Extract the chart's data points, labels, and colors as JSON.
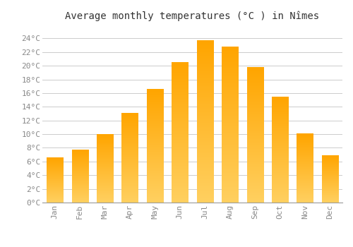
{
  "months": [
    "Jan",
    "Feb",
    "Mar",
    "Apr",
    "May",
    "Jun",
    "Jul",
    "Aug",
    "Sep",
    "Oct",
    "Nov",
    "Dec"
  ],
  "temperatures": [
    6.5,
    7.7,
    10.0,
    13.0,
    16.6,
    20.5,
    23.7,
    22.8,
    19.8,
    15.4,
    10.1,
    6.9
  ],
  "title": "Average monthly temperatures (°C ) in Nîmes",
  "ylim": [
    0,
    26
  ],
  "yticks": [
    0,
    2,
    4,
    6,
    8,
    10,
    12,
    14,
    16,
    18,
    20,
    22,
    24
  ],
  "ytick_labels": [
    "0°C",
    "2°C",
    "4°C",
    "6°C",
    "8°C",
    "10°C",
    "12°C",
    "14°C",
    "16°C",
    "18°C",
    "20°C",
    "22°C",
    "24°C"
  ],
  "bar_color_top": "#FFA500",
  "bar_color_bottom": "#FFD060",
  "background_color": "#FFFFFF",
  "grid_color": "#CCCCCC",
  "title_fontsize": 10,
  "tick_fontsize": 8,
  "tick_color": "#888888",
  "font_family": "monospace",
  "bar_width": 0.65
}
